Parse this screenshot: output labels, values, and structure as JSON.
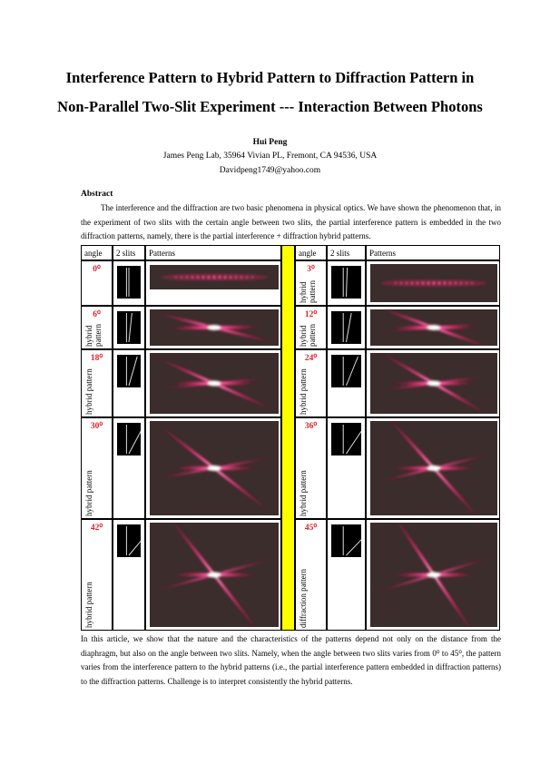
{
  "header": {
    "title": [
      "Interference Pattern to Hybrid Pattern to Diffraction Pattern in",
      "Non-Parallel Two-Slit Experiment --- Interaction Between Photons"
    ],
    "author": "Hui Peng",
    "affiliation": "James Peng Lab, 35964 Vivian PL, Fremont, CA 94536, USA",
    "email": "Davidpeng1749@yahoo.com"
  },
  "abstract": {
    "heading": "Abstract",
    "text": "The interference and the diffraction are two basic phenomena in physical optics. We have shown the phenomenon that, in the experiment of two slits with the certain angle between two slits, the partial interference pattern is embedded in the two diffraction patterns, namely, there is the partial interference + diffraction hybrid patterns."
  },
  "table": {
    "header": [
      "angle",
      "2 slits",
      "Patterns",
      "angle",
      "2 slits",
      "Patterns"
    ],
    "rows": [
      [
        {
          "angle": "0⁰"
        },
        {
          "angle": "3⁰",
          "label": "hybrid pattern"
        }
      ],
      [
        {
          "angle": "6⁰",
          "label": "hybrid pattern"
        },
        {
          "angle": "12⁰",
          "label": "hybrid pattern"
        }
      ],
      [
        {
          "angle": "18⁰",
          "label": "hybrid pattern"
        },
        {
          "angle": "24⁰",
          "label": "hybrid pattern"
        }
      ],
      [
        {
          "angle": "30⁰",
          "label": "hybrid pattern"
        },
        {
          "angle": "36⁰",
          "label": "hybrid pattern"
        }
      ],
      [
        {
          "angle": "42⁰",
          "label": "hybrid pattern"
        },
        {
          "angle": "45⁰",
          "label": "diffraction pattern"
        }
      ]
    ]
  },
  "body": {
    "text": "In this article, we show that the nature and the characteristics of the patterns depend not only on the distance from the diaphragm, but also on the angle between two slits. Namely, when the angle between two slits varies from 0⁰ to 45⁰, the pattern varies from the interference pattern to the hybrid patterns (i.e., the partial interference pattern embedded in diffraction patterns) to the diffraction patterns. Challenge is to interpret consistently the hybrid patterns."
  }
}
